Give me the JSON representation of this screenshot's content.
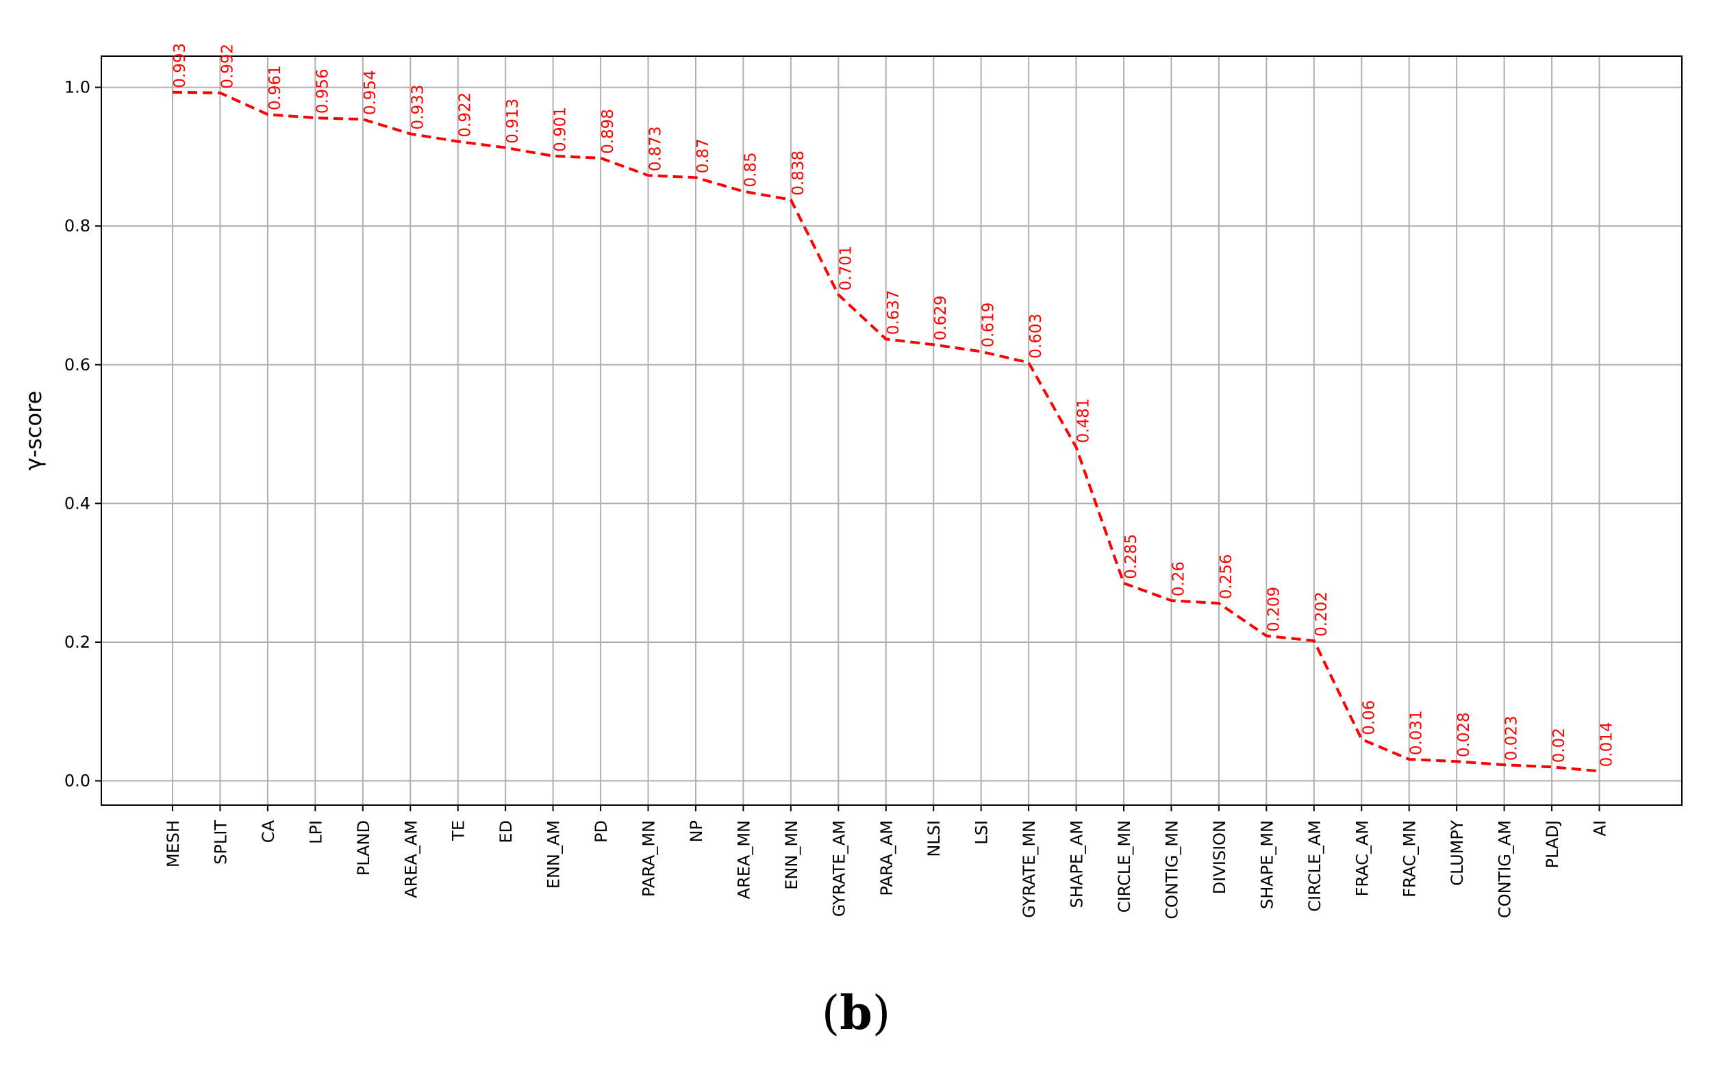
{
  "chart_data": {
    "type": "line",
    "title": "",
    "xlabel": "",
    "ylabel": "γ-score",
    "ylim": [
      -0.035,
      1.045
    ],
    "yticks": [
      0.0,
      0.2,
      0.4,
      0.6,
      0.8,
      1.0
    ],
    "ytick_labels": [
      "0.0",
      "0.2",
      "0.4",
      "0.6",
      "0.8",
      "1.0"
    ],
    "grid": true,
    "line_style": "dashed",
    "line_color": "#ff0000",
    "categories": [
      "MESH",
      "SPLIT",
      "CA",
      "LPI",
      "PLAND",
      "AREA_AM",
      "TE",
      "ED",
      "ENN_AM",
      "PD",
      "PARA_MN",
      "NP",
      "AREA_MN",
      "ENN_MN",
      "GYRATE_AM",
      "PARA_AM",
      "NLSI",
      "LSI",
      "GYRATE_MN",
      "SHAPE_AM",
      "CIRCLE_MN",
      "CONTIG_MN",
      "DIVISION",
      "SHAPE_MN",
      "CIRCLE_AM",
      "FRAC_AM",
      "FRAC_MN",
      "CLUMPY",
      "CONTIG_AM",
      "PLADJ",
      "AI"
    ],
    "values": [
      0.993,
      0.992,
      0.961,
      0.956,
      0.954,
      0.933,
      0.922,
      0.913,
      0.901,
      0.898,
      0.873,
      0.87,
      0.85,
      0.838,
      0.701,
      0.637,
      0.629,
      0.619,
      0.603,
      0.481,
      0.285,
      0.26,
      0.256,
      0.209,
      0.202,
      0.06,
      0.031,
      0.028,
      0.023,
      0.02,
      0.014
    ],
    "data_labels": [
      "0.993",
      "0.992",
      "0.961",
      "0.956",
      "0.954",
      "0.933",
      "0.922",
      "0.913",
      "0.901",
      "0.898",
      "0.873",
      "0.87",
      "0.85",
      "0.838",
      "0.701",
      "0.637",
      "0.629",
      "0.619",
      "0.603",
      "0.481",
      "0.285",
      "0.26",
      "0.256",
      "0.209",
      "0.202",
      "0.06",
      "0.031",
      "0.028",
      "0.023",
      "0.02",
      "0.014"
    ]
  },
  "panel_label": {
    "open": "(",
    "letter": "b",
    "close": ")"
  }
}
